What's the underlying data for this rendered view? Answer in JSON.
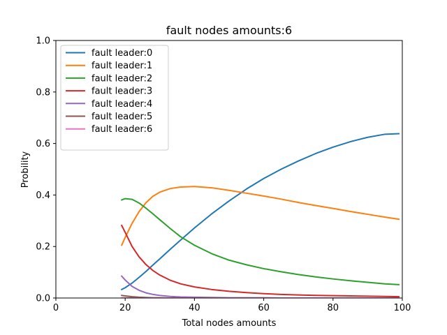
{
  "chart_data": {
    "type": "line",
    "title": "fault nodes amounts:6",
    "xlabel": "Total nodes amounts",
    "ylabel": "Probility",
    "xlim": [
      0,
      100
    ],
    "ylim": [
      0,
      1.0
    ],
    "xticks": [
      "0",
      "20",
      "40",
      "60",
      "80",
      "100"
    ],
    "yticks": [
      "0.0",
      "0.2",
      "0.4",
      "0.6",
      "0.8",
      "1.0"
    ],
    "grid": false,
    "legend_position": "upper-left",
    "x": [
      19,
      20,
      22,
      24,
      26,
      28,
      30,
      33,
      36,
      40,
      45,
      50,
      55,
      60,
      65,
      70,
      75,
      80,
      85,
      90,
      95,
      99
    ],
    "series": [
      {
        "name": "fault leader:0",
        "color": "#1f77b4",
        "values": [
          0.033,
          0.04,
          0.058,
          0.08,
          0.103,
          0.128,
          0.152,
          0.189,
          0.225,
          0.272,
          0.327,
          0.377,
          0.423,
          0.464,
          0.5,
          0.532,
          0.561,
          0.586,
          0.607,
          0.624,
          0.636,
          0.638
        ]
      },
      {
        "name": "fault leader:1",
        "color": "#ff7f0e",
        "values": [
          0.205,
          0.235,
          0.29,
          0.335,
          0.37,
          0.395,
          0.411,
          0.425,
          0.431,
          0.433,
          0.428,
          0.418,
          0.407,
          0.396,
          0.384,
          0.371,
          0.359,
          0.348,
          0.336,
          0.325,
          0.314,
          0.306
        ]
      },
      {
        "name": "fault leader:2",
        "color": "#2ca02c",
        "values": [
          0.381,
          0.386,
          0.383,
          0.369,
          0.349,
          0.327,
          0.304,
          0.27,
          0.238,
          0.205,
          0.172,
          0.147,
          0.129,
          0.114,
          0.102,
          0.091,
          0.082,
          0.074,
          0.067,
          0.061,
          0.055,
          0.052
        ]
      },
      {
        "name": "fault leader:3",
        "color": "#d62728",
        "values": [
          0.282,
          0.255,
          0.2,
          0.16,
          0.13,
          0.107,
          0.089,
          0.069,
          0.055,
          0.043,
          0.033,
          0.026,
          0.021,
          0.017,
          0.014,
          0.012,
          0.01,
          0.009,
          0.008,
          0.007,
          0.006,
          0.005
        ]
      },
      {
        "name": "fault leader:4",
        "color": "#9467bd",
        "values": [
          0.085,
          0.07,
          0.045,
          0.03,
          0.02,
          0.014,
          0.01,
          0.006,
          0.004,
          0.003,
          0.002,
          0.001,
          0.001,
          0.001,
          0.0,
          0.0,
          0.0,
          0.0,
          0.0,
          0.0,
          0.0,
          0.0
        ]
      },
      {
        "name": "fault leader:5",
        "color": "#8c564b",
        "values": [
          0.01,
          0.008,
          0.005,
          0.003,
          0.002,
          0.001,
          0.001,
          0.0,
          0.0,
          0.0,
          0.0,
          0.0,
          0.0,
          0.0,
          0.0,
          0.0,
          0.0,
          0.0,
          0.0,
          0.0,
          0.0,
          0.0
        ]
      },
      {
        "name": "fault leader:6",
        "color": "#e377c2",
        "values": [
          0.0005,
          0.0004,
          0.0002,
          0.0001,
          0.0,
          0.0,
          0.0,
          0.0,
          0.0,
          0.0,
          0.0,
          0.0,
          0.0,
          0.0,
          0.0,
          0.0,
          0.0,
          0.0,
          0.0,
          0.0,
          0.0,
          0.0
        ]
      }
    ]
  }
}
